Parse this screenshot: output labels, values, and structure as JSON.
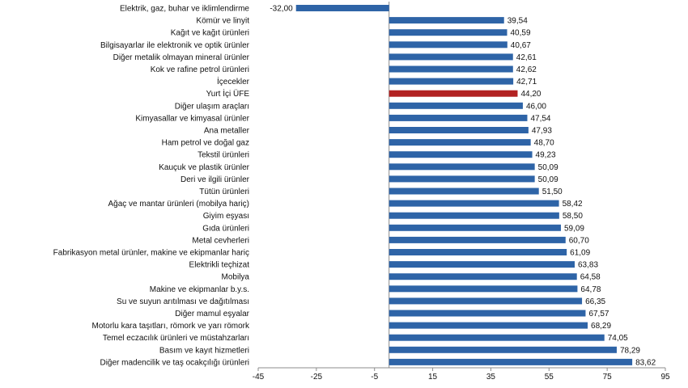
{
  "chart_data": {
    "type": "bar",
    "orientation": "horizontal",
    "xlim": [
      -45,
      95
    ],
    "x_ticks": [
      -45,
      -25,
      -5,
      15,
      35,
      55,
      75,
      95
    ],
    "grid": false,
    "highlight_color": "#b22222",
    "bar_color": "#2e64a7",
    "categories": [
      "Elektrik, gaz, buhar ve iklimlendirme",
      "Kömür ve linyit",
      "Kağıt ve kağıt ürünleri",
      "Bilgisayarlar ile elektronik ve optik ürünler",
      "Diğer metalik olmayan mineral ürünler",
      "Kok ve rafine petrol ürünleri",
      "İçecekler",
      "Yurt İçi ÜFE",
      "Diğer ulaşım araçları",
      "Kimyasallar ve kimyasal ürünler",
      "Ana metaller",
      "Ham petrol ve doğal gaz",
      "Tekstil ürünleri",
      "Kauçuk ve plastik ürünler",
      "Deri ve ilgili ürünler",
      "Tütün ürünleri",
      "Ağaç ve mantar ürünleri (mobilya hariç)",
      "Giyim eşyası",
      "Gıda ürünleri",
      "Metal cevherleri",
      "Fabrikasyon metal ürünler, makine ve ekipmanlar hariç",
      "Elektrikli teçhizat",
      "Mobilya",
      "Makine ve ekipmanlar b.y.s.",
      "Su ve suyun arıtılması ve dağıtılması",
      "Diğer mamul eşyalar",
      "Motorlu kara taşıtları, römork ve yarı römork",
      "Temel eczacılık ürünleri ve müstahzarları",
      "Basım ve kayıt hizmetleri",
      "Diğer madencilik ve taş ocakçılığı ürünleri"
    ],
    "values": [
      -32.0,
      39.54,
      40.59,
      40.67,
      42.61,
      42.62,
      42.71,
      44.2,
      46.0,
      47.54,
      47.93,
      48.7,
      49.23,
      50.09,
      50.09,
      51.5,
      58.42,
      58.5,
      59.09,
      60.7,
      61.09,
      63.83,
      64.58,
      64.78,
      66.35,
      67.57,
      68.29,
      74.05,
      78.29,
      83.62
    ],
    "value_labels": [
      "-32,00",
      "39,54",
      "40,59",
      "40,67",
      "42,61",
      "42,62",
      "42,71",
      "44,20",
      "46,00",
      "47,54",
      "47,93",
      "48,70",
      "49,23",
      "50,09",
      "50,09",
      "51,50",
      "58,42",
      "58,50",
      "59,09",
      "60,70",
      "61,09",
      "63,83",
      "64,58",
      "64,78",
      "66,35",
      "67,57",
      "68,29",
      "74,05",
      "78,29",
      "83,62"
    ],
    "highlight_index": 7
  }
}
